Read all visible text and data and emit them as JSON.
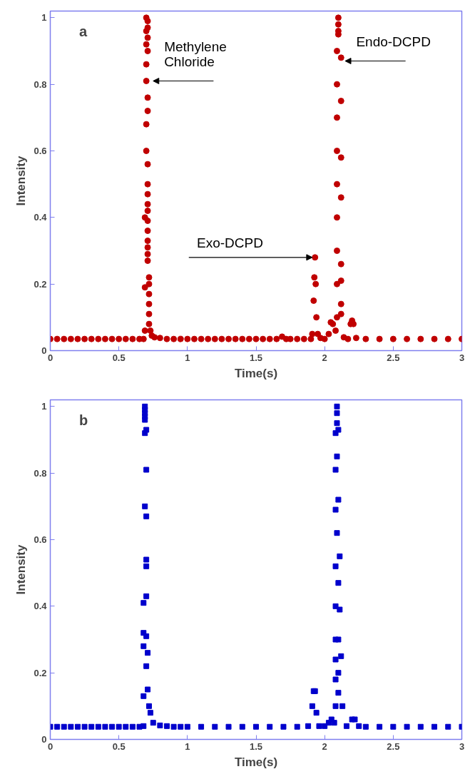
{
  "chart_data": [
    {
      "type": "scatter",
      "xlabel": "Time(s)",
      "ylabel": "Intensity",
      "xlim": [
        0,
        3
      ],
      "ylim": [
        0,
        1.02
      ],
      "xticks": [
        0,
        0.5,
        1,
        1.5,
        2,
        2.5,
        3
      ],
      "yticks": [
        0,
        0.2,
        0.4,
        0.6,
        0.8,
        1
      ],
      "grid": false,
      "marker": "circle",
      "annotations": [
        "a",
        {
          "text": "Methylene Chloride",
          "x": 0.74,
          "y": 0.81
        },
        {
          "text": "Endo-DCPD",
          "x": 2.14,
          "y": 0.87
        },
        {
          "text": "Exo-DCPD",
          "x": 1.91,
          "y": 0.28
        }
      ],
      "series": [
        {
          "color": "#c00000",
          "x": [
            0,
            0.05,
            0.1,
            0.15,
            0.2,
            0.25,
            0.3,
            0.35,
            0.4,
            0.45,
            0.5,
            0.55,
            0.6,
            0.65,
            0.68,
            0.69,
            0.69,
            0.69,
            0.7,
            0.7,
            0.7,
            0.7,
            0.7,
            0.7,
            0.7,
            0.71,
            0.71,
            0.71,
            0.71,
            0.71,
            0.71,
            0.71,
            0.71,
            0.71,
            0.71,
            0.71,
            0.71,
            0.71,
            0.71,
            0.71,
            0.71,
            0.71,
            0.72,
            0.72,
            0.72,
            0.72,
            0.72,
            0.72,
            0.73,
            0.74,
            0.76,
            0.8,
            0.85,
            0.9,
            0.95,
            1,
            1.05,
            1.1,
            1.15,
            1.2,
            1.25,
            1.3,
            1.35,
            1.4,
            1.45,
            1.5,
            1.55,
            1.6,
            1.65,
            1.69,
            1.72,
            1.75,
            1.8,
            1.85,
            1.9,
            1.91,
            1.92,
            1.925,
            1.93,
            1.935,
            1.94,
            1.95,
            1.97,
            2,
            2.03,
            2.045,
            2.06,
            2.08,
            2.09,
            2.09,
            2.09,
            2.09,
            2.09,
            2.09,
            2.09,
            2.09,
            2.09,
            2.1,
            2.1,
            2.1,
            2.1,
            2.12,
            2.12,
            2.12,
            2.12,
            2.12,
            2.12,
            2.12,
            2.12,
            2.14,
            2.17,
            2.19,
            2.2,
            2.21,
            2.23,
            2.3,
            2.4,
            2.5,
            2.6,
            2.7,
            2.8,
            2.9,
            3
          ],
          "values": [
            0.035,
            0.035,
            0.035,
            0.035,
            0.035,
            0.035,
            0.035,
            0.035,
            0.035,
            0.035,
            0.035,
            0.035,
            0.035,
            0.035,
            0.035,
            0.06,
            0.19,
            0.4,
            0.6,
            0.68,
            0.81,
            0.86,
            0.92,
            0.96,
            1,
            0.99,
            0.97,
            0.94,
            0.9,
            0.76,
            0.72,
            0.56,
            0.5,
            0.47,
            0.44,
            0.42,
            0.39,
            0.36,
            0.33,
            0.31,
            0.29,
            0.27,
            0.22,
            0.2,
            0.17,
            0.14,
            0.11,
            0.08,
            0.06,
            0.045,
            0.04,
            0.038,
            0.035,
            0.035,
            0.035,
            0.035,
            0.035,
            0.035,
            0.035,
            0.035,
            0.035,
            0.035,
            0.035,
            0.035,
            0.035,
            0.035,
            0.035,
            0.035,
            0.035,
            0.042,
            0.035,
            0.035,
            0.035,
            0.035,
            0.035,
            0.05,
            0.15,
            0.22,
            0.28,
            0.2,
            0.1,
            0.05,
            0.038,
            0.035,
            0.05,
            0.085,
            0.08,
            0.06,
            0.1,
            0.2,
            0.3,
            0.4,
            0.5,
            0.6,
            0.7,
            0.8,
            0.9,
            0.95,
            1,
            0.98,
            0.96,
            0.88,
            0.75,
            0.58,
            0.46,
            0.26,
            0.21,
            0.14,
            0.11,
            0.04,
            0.035,
            0.08,
            0.09,
            0.08,
            0.038,
            0.035,
            0.035,
            0.035,
            0.035,
            0.035,
            0.035,
            0.035,
            0.035
          ]
        }
      ]
    },
    {
      "type": "scatter",
      "xlabel": "Time(s)",
      "ylabel": "Intensity",
      "xlim": [
        0,
        3
      ],
      "ylim": [
        0,
        1.02
      ],
      "xticks": [
        0,
        0.5,
        1,
        1.5,
        2,
        2.5,
        3
      ],
      "yticks": [
        0,
        0.2,
        0.4,
        0.6,
        0.8,
        1
      ],
      "grid": false,
      "marker": "square",
      "annotations": [
        "b"
      ],
      "series": [
        {
          "color": "#0000cc",
          "x": [
            0,
            0.05,
            0.1,
            0.15,
            0.2,
            0.25,
            0.3,
            0.35,
            0.4,
            0.45,
            0.5,
            0.55,
            0.6,
            0.65,
            0.68,
            0.68,
            0.68,
            0.68,
            0.68,
            0.69,
            0.69,
            0.69,
            0.69,
            0.69,
            0.69,
            0.69,
            0.7,
            0.7,
            0.7,
            0.7,
            0.7,
            0.7,
            0.7,
            0.7,
            0.71,
            0.71,
            0.72,
            0.73,
            0.75,
            0.8,
            0.85,
            0.9,
            0.95,
            1,
            1.1,
            1.2,
            1.3,
            1.4,
            1.5,
            1.6,
            1.7,
            1.8,
            1.88,
            1.91,
            1.92,
            1.93,
            1.94,
            1.96,
            2,
            2.03,
            2.05,
            2.07,
            2.08,
            2.08,
            2.08,
            2.08,
            2.08,
            2.08,
            2.08,
            2.08,
            2.08,
            2.09,
            2.09,
            2.09,
            2.09,
            2.09,
            2.1,
            2.1,
            2.1,
            2.1,
            2.1,
            2.1,
            2.11,
            2.11,
            2.12,
            2.13,
            2.16,
            2.2,
            2.22,
            2.25,
            2.3,
            2.4,
            2.5,
            2.6,
            2.7,
            2.8,
            2.9,
            3
          ],
          "values": [
            0.038,
            0.038,
            0.038,
            0.038,
            0.038,
            0.038,
            0.038,
            0.038,
            0.038,
            0.038,
            0.038,
            0.038,
            0.038,
            0.038,
            0.04,
            0.13,
            0.28,
            0.32,
            0.41,
            0.7,
            0.92,
            0.96,
            1,
            0.99,
            0.98,
            0.97,
            0.93,
            0.81,
            0.67,
            0.54,
            0.52,
            0.43,
            0.31,
            0.22,
            0.26,
            0.15,
            0.1,
            0.08,
            0.05,
            0.042,
            0.04,
            0.038,
            0.038,
            0.038,
            0.038,
            0.038,
            0.038,
            0.038,
            0.038,
            0.038,
            0.038,
            0.038,
            0.04,
            0.1,
            0.145,
            0.145,
            0.08,
            0.04,
            0.04,
            0.05,
            0.06,
            0.05,
            0.1,
            0.18,
            0.24,
            0.3,
            0.4,
            0.52,
            0.69,
            0.81,
            0.92,
            1,
            0.98,
            0.95,
            0.85,
            0.62,
            0.93,
            0.72,
            0.47,
            0.3,
            0.2,
            0.14,
            0.55,
            0.39,
            0.25,
            0.1,
            0.04,
            0.06,
            0.06,
            0.04,
            0.038,
            0.038,
            0.038,
            0.038,
            0.038,
            0.038,
            0.038,
            0.038
          ]
        }
      ]
    }
  ]
}
